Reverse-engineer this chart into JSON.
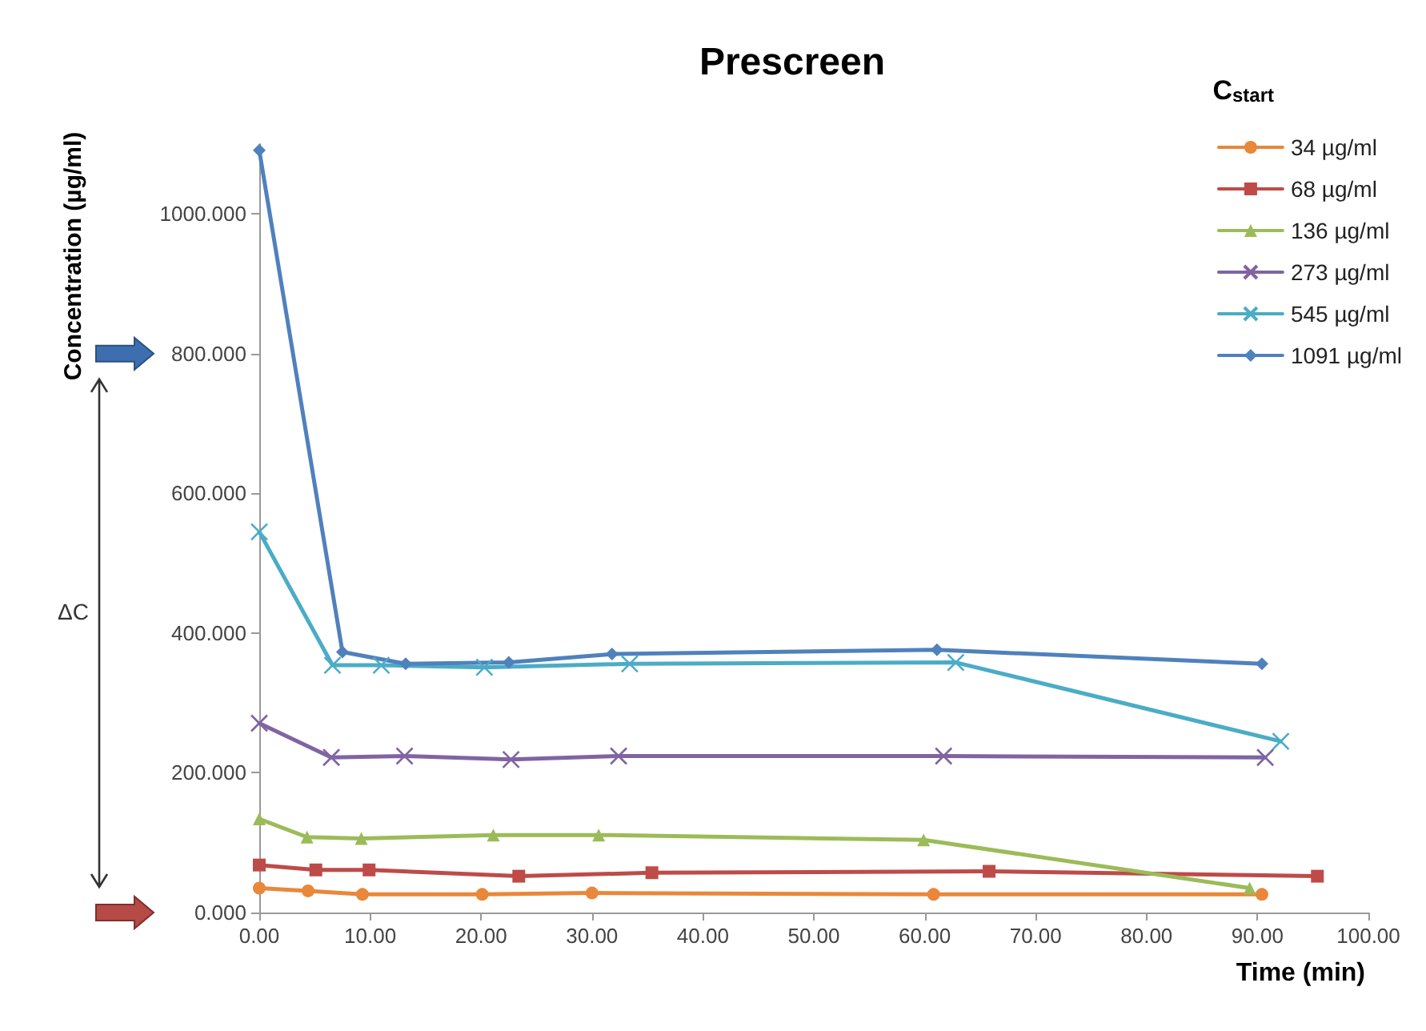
{
  "chart_data": {
    "type": "line",
    "title": "Prescreen",
    "xlabel": "Time (min)",
    "ylabel": "Concentration (µg/ml)",
    "legend_title": "C$_{start}$",
    "annotations": [
      "ΔC"
    ],
    "xlim": [
      0,
      100
    ],
    "xticks": [
      {
        "value": 0,
        "label": "0.00"
      },
      {
        "value": 10,
        "label": "10.00"
      },
      {
        "value": 20,
        "label": "20.00"
      },
      {
        "value": 30,
        "label": "30.00"
      },
      {
        "value": 40,
        "label": "40.00"
      },
      {
        "value": 50,
        "label": "50.00"
      },
      {
        "value": 60,
        "label": "60.00"
      },
      {
        "value": 70,
        "label": "70.00"
      },
      {
        "value": 80,
        "label": "80.00"
      },
      {
        "value": 90,
        "label": "90.00"
      },
      {
        "value": 100,
        "label": "100.00"
      }
    ],
    "ylim": [
      0,
      1100
    ],
    "yticks": [
      {
        "value": 0,
        "label": "0.000"
      },
      {
        "value": 200,
        "label": "200.000"
      },
      {
        "value": 400,
        "label": "400.000"
      },
      {
        "value": 600,
        "label": "600.000"
      },
      {
        "value": 800,
        "label": "800.000"
      },
      {
        "value": 1000,
        "label": "1000.000"
      }
    ],
    "grid": false,
    "legend": "top right",
    "line_style": "solid",
    "series": [
      {
        "name": "34 µg/ml",
        "color": "#e9873a",
        "marker": "circle",
        "x": [
          0,
          4.4,
          9.3,
          20.1,
          30,
          60.8,
          90.4
        ],
        "values": [
          35,
          31,
          26,
          26,
          28,
          26,
          26
        ]
      },
      {
        "name": "68 µg/ml",
        "color": "#be4b48",
        "marker": "square",
        "x": [
          0,
          5.1,
          9.9,
          23.4,
          35.4,
          65.8,
          95.4
        ],
        "values": [
          68,
          61,
          61,
          52,
          57,
          59,
          52
        ]
      },
      {
        "name": "136 µg/ml",
        "color": "#9bbb59",
        "marker": "triangle",
        "x": [
          0,
          4.3,
          9.2,
          21.1,
          30.6,
          59.9,
          89.3
        ],
        "values": [
          134,
          108,
          106,
          111,
          111,
          104,
          35
        ]
      },
      {
        "name": "273 µg/ml",
        "color": "#8064a2",
        "marker": "cross",
        "x": [
          0,
          6.5,
          13.1,
          22.7,
          32.4,
          61.7,
          90.7
        ],
        "values": [
          271,
          222,
          224,
          219,
          224,
          224,
          222
        ]
      },
      {
        "name": "545 µg/ml",
        "color": "#4bacc6",
        "marker": "cross",
        "x": [
          0,
          6.6,
          11,
          20.3,
          33.4,
          62.8,
          92.1
        ],
        "values": [
          545,
          354,
          354,
          351,
          356,
          358,
          245
        ]
      },
      {
        "name": "1091 µg/ml",
        "color": "#4f81bd",
        "marker": "diamond",
        "x": [
          0,
          7.5,
          13.2,
          22.5,
          31.8,
          61.1,
          90.4
        ],
        "values": [
          1091,
          373,
          356,
          358,
          370,
          376,
          356
        ]
      }
    ]
  }
}
